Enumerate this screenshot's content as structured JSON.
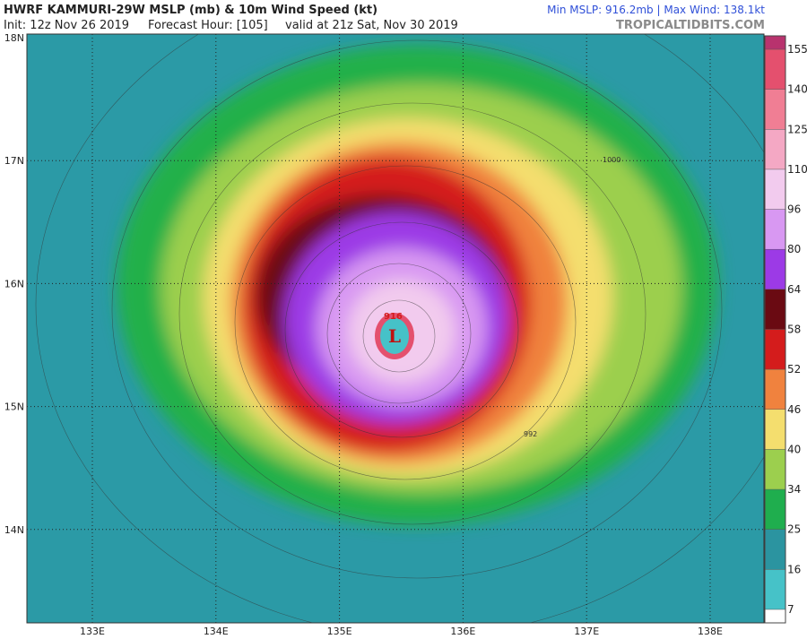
{
  "header": {
    "title": "HWRF KAMMURI-29W MSLP (mb) & 10m Wind Speed (kt)",
    "init": "Init: 12z Nov 26 2019",
    "forecast_hour": "Forecast Hour: [105]",
    "valid": "valid at 21z Sat, Nov 30 2019",
    "stats": "Min MSLP: 916.2mb | Max Wind: 138.1kt",
    "site": "TROPICALTIDBITS.COM"
  },
  "map": {
    "lat_labels": [
      "18N",
      "17N",
      "16N",
      "15N",
      "14N"
    ],
    "lon_labels": [
      "133E",
      "134E",
      "135E",
      "136E",
      "137E",
      "138E"
    ],
    "center_label": "L",
    "center_pressure": "916",
    "contour_labels": [
      "1000",
      "992"
    ]
  },
  "colorbar": {
    "labels": [
      "155",
      "140",
      "125",
      "110",
      "96",
      "80",
      "64",
      "58",
      "52",
      "46",
      "40",
      "34",
      "25",
      "16",
      "7"
    ],
    "colors": [
      "#b8336e",
      "#e4506e",
      "#f07e94",
      "#f4a8c4",
      "#f2cbee",
      "#d898f2",
      "#9c3ae6",
      "#6a0a12",
      "#d41c1c",
      "#f0823e",
      "#f4de6e",
      "#9ccf4e",
      "#1fae4e",
      "#2b94a0",
      "#46c2c8",
      "#7ee6e6"
    ]
  }
}
